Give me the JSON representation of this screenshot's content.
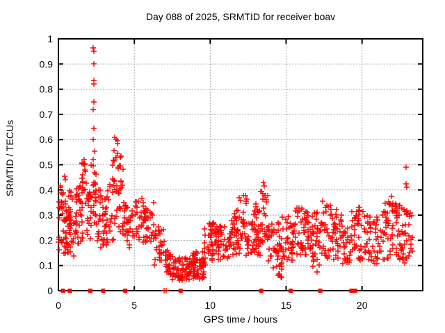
{
  "page": {
    "background": "#ffffff"
  },
  "chart_data": {
    "type": "scatter",
    "title": "Day 088 of 2025, SRMTID for receiver boav",
    "xlabel": "GPS time / hours",
    "ylabel": "SRMTID / TECUs",
    "xlim": [
      0,
      24
    ],
    "ylim": [
      0,
      1
    ],
    "xticks": [
      0,
      5,
      10,
      15,
      20
    ],
    "xtick_labels": [
      "0",
      "5",
      "10",
      "15",
      "20"
    ],
    "yticks": [
      0,
      0.1,
      0.2,
      0.3,
      0.4,
      0.5,
      0.6,
      0.7,
      0.8,
      0.9,
      1
    ],
    "ytick_labels": [
      "0",
      "0.1",
      "0.2",
      "0.3",
      "0.4",
      "0.5",
      "0.6",
      "0.7",
      "0.8",
      "0.9",
      "1"
    ],
    "grid": true,
    "legend": "none",
    "marker": "plus",
    "marker_color": "#ff0000",
    "grid_color": "#a6a6a6",
    "axis_color": "#000000",
    "seed": 880,
    "clusters_note": "each cluster = [x_start_hour, x_end_hour, n_points, y_min_TECU, y_max_TECU] describing the dense scatter bands read from the plot",
    "clusters": [
      [
        0.0,
        0.55,
        32,
        0.14,
        0.35
      ],
      [
        0.05,
        0.5,
        8,
        0.3,
        0.42
      ],
      [
        0.5,
        1.1,
        40,
        0.13,
        0.33
      ],
      [
        0.55,
        0.95,
        6,
        0.32,
        0.4
      ],
      [
        1.1,
        1.6,
        34,
        0.17,
        0.42
      ],
      [
        1.5,
        1.85,
        16,
        0.34,
        0.52
      ],
      [
        1.85,
        2.15,
        20,
        0.2,
        0.4
      ],
      [
        2.15,
        2.5,
        24,
        0.24,
        0.5
      ],
      [
        2.5,
        3.3,
        46,
        0.17,
        0.42
      ],
      [
        3.3,
        4.3,
        44,
        0.2,
        0.5
      ],
      [
        3.5,
        4.15,
        12,
        0.46,
        0.6
      ],
      [
        4.3,
        5.0,
        30,
        0.17,
        0.35
      ],
      [
        5.0,
        6.3,
        56,
        0.19,
        0.37
      ],
      [
        6.3,
        7.05,
        30,
        0.1,
        0.27
      ],
      [
        7.05,
        7.5,
        28,
        0.06,
        0.16
      ],
      [
        7.5,
        9.6,
        112,
        0.04,
        0.13
      ],
      [
        8.8,
        9.6,
        14,
        0.1,
        0.16
      ],
      [
        9.6,
        10.3,
        38,
        0.1,
        0.28
      ],
      [
        10.3,
        11.4,
        54,
        0.12,
        0.26
      ],
      [
        11.4,
        12.5,
        54,
        0.14,
        0.32
      ],
      [
        11.9,
        12.45,
        8,
        0.31,
        0.38
      ],
      [
        12.5,
        13.3,
        40,
        0.14,
        0.32
      ],
      [
        12.5,
        13.25,
        6,
        0.3,
        0.36
      ],
      [
        13.3,
        13.8,
        24,
        0.18,
        0.4
      ],
      [
        13.8,
        14.7,
        40,
        0.08,
        0.28
      ],
      [
        14.35,
        14.8,
        10,
        0.05,
        0.11
      ],
      [
        14.7,
        15.6,
        40,
        0.12,
        0.3
      ],
      [
        15.6,
        16.5,
        44,
        0.14,
        0.33
      ],
      [
        16.3,
        17.1,
        14,
        0.22,
        0.34
      ],
      [
        16.5,
        17.3,
        30,
        0.07,
        0.25
      ],
      [
        17.3,
        18.7,
        60,
        0.12,
        0.31
      ],
      [
        17.4,
        18.3,
        8,
        0.3,
        0.37
      ],
      [
        18.7,
        19.3,
        24,
        0.1,
        0.27
      ],
      [
        19.3,
        20.3,
        44,
        0.12,
        0.33
      ],
      [
        20.3,
        21.3,
        44,
        0.1,
        0.3
      ],
      [
        21.3,
        22.5,
        54,
        0.12,
        0.35
      ],
      [
        21.7,
        22.4,
        8,
        0.31,
        0.38
      ],
      [
        22.5,
        23.35,
        44,
        0.1,
        0.33
      ]
    ],
    "outliers": [
      [
        0.15,
        0.41
      ],
      [
        0.42,
        0.455
      ],
      [
        0.45,
        0.44
      ],
      [
        1.68,
        0.52
      ],
      [
        1.76,
        0.505
      ],
      [
        2.31,
        0.965
      ],
      [
        2.33,
        0.95
      ],
      [
        2.32,
        0.9
      ],
      [
        2.34,
        0.835
      ],
      [
        2.35,
        0.82
      ],
      [
        2.33,
        0.75
      ],
      [
        2.3,
        0.72
      ],
      [
        2.34,
        0.645
      ],
      [
        2.31,
        0.6
      ],
      [
        2.36,
        0.555
      ],
      [
        2.29,
        0.52
      ],
      [
        3.72,
        0.61
      ],
      [
        3.81,
        0.6
      ],
      [
        3.88,
        0.585
      ],
      [
        5.25,
        0.355
      ],
      [
        5.6,
        0.35
      ],
      [
        13.5,
        0.43
      ],
      [
        13.54,
        0.415
      ],
      [
        13.47,
        0.385
      ],
      [
        22.88,
        0.49
      ],
      [
        22.91,
        0.425
      ],
      [
        22.93,
        0.41
      ]
    ],
    "zero_plus": [
      [
        6.98,
        0
      ],
      [
        7.08,
        0
      ]
    ],
    "zero_squares": [
      0.3,
      0.75,
      2.1,
      2.95,
      4.4,
      8.05,
      13.35,
      15.3,
      17.25,
      19.3,
      19.55
    ]
  }
}
